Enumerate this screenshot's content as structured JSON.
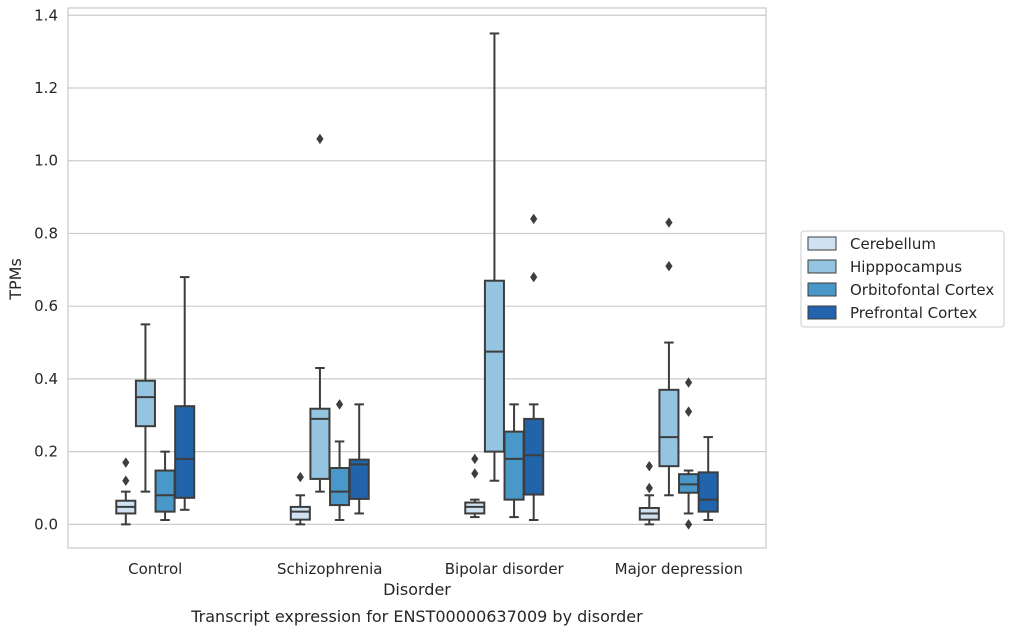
{
  "caption": "Transcript expression for ENST00000637009 by disorder",
  "chart_data": {
    "type": "box",
    "xlabel": "Disorder",
    "ylabel": "TPMs",
    "ylim": [
      -0.065,
      1.42
    ],
    "yticks": [
      "0.0",
      "0.2",
      "0.4",
      "0.6",
      "0.8",
      "1.0",
      "1.2",
      "1.4"
    ],
    "grid": "horizontal",
    "legend_position": "right",
    "categories": [
      "Control",
      "Schizophrenia",
      "Bipolar disorder",
      "Major depression"
    ],
    "series": [
      {
        "name": "Cerebellum",
        "color": "#d0e2f2",
        "boxes": [
          {
            "whisker_low": 0.0,
            "q1": 0.03,
            "median": 0.048,
            "q3": 0.065,
            "whisker_high": 0.09,
            "outliers": [
              0.12,
              0.17
            ]
          },
          {
            "whisker_low": 0.0,
            "q1": 0.013,
            "median": 0.035,
            "q3": 0.048,
            "whisker_high": 0.08,
            "outliers": [
              0.13
            ]
          },
          {
            "whisker_low": 0.02,
            "q1": 0.03,
            "median": 0.048,
            "q3": 0.06,
            "whisker_high": 0.068,
            "outliers": [
              0.14,
              0.18
            ]
          },
          {
            "whisker_low": 0.0,
            "q1": 0.013,
            "median": 0.03,
            "q3": 0.045,
            "whisker_high": 0.08,
            "outliers": [
              0.1,
              0.16
            ]
          }
        ]
      },
      {
        "name": "Hipppocampus",
        "color": "#94c4df",
        "boxes": [
          {
            "whisker_low": 0.09,
            "q1": 0.27,
            "median": 0.35,
            "q3": 0.395,
            "whisker_high": 0.55,
            "outliers": []
          },
          {
            "whisker_low": 0.09,
            "q1": 0.125,
            "median": 0.29,
            "q3": 0.318,
            "whisker_high": 0.43,
            "outliers": [
              1.06
            ]
          },
          {
            "whisker_low": 0.12,
            "q1": 0.2,
            "median": 0.475,
            "q3": 0.67,
            "whisker_high": 1.35,
            "outliers": []
          },
          {
            "whisker_low": 0.08,
            "q1": 0.16,
            "median": 0.24,
            "q3": 0.37,
            "whisker_high": 0.5,
            "outliers": [
              0.71,
              0.83
            ]
          }
        ]
      },
      {
        "name": "Orbitofontal Cortex",
        "color": "#4a98c9",
        "boxes": [
          {
            "whisker_low": 0.012,
            "q1": 0.035,
            "median": 0.08,
            "q3": 0.148,
            "whisker_high": 0.2,
            "outliers": []
          },
          {
            "whisker_low": 0.012,
            "q1": 0.053,
            "median": 0.09,
            "q3": 0.155,
            "whisker_high": 0.228,
            "outliers": [
              0.33
            ]
          },
          {
            "whisker_low": 0.02,
            "q1": 0.068,
            "median": 0.18,
            "q3": 0.255,
            "whisker_high": 0.33,
            "outliers": []
          },
          {
            "whisker_low": 0.03,
            "q1": 0.087,
            "median": 0.11,
            "q3": 0.138,
            "whisker_high": 0.148,
            "outliers": [
              0.0,
              0.31,
              0.39
            ]
          }
        ]
      },
      {
        "name": "Prefrontal Cortex",
        "color": "#2164ab",
        "boxes": [
          {
            "whisker_low": 0.04,
            "q1": 0.073,
            "median": 0.18,
            "q3": 0.325,
            "whisker_high": 0.68,
            "outliers": []
          },
          {
            "whisker_low": 0.03,
            "q1": 0.07,
            "median": 0.165,
            "q3": 0.178,
            "whisker_high": 0.33,
            "outliers": []
          },
          {
            "whisker_low": 0.012,
            "q1": 0.082,
            "median": 0.19,
            "q3": 0.29,
            "whisker_high": 0.33,
            "outliers": [
              0.68,
              0.84
            ]
          },
          {
            "whisker_low": 0.012,
            "q1": 0.035,
            "median": 0.068,
            "q3": 0.143,
            "whisker_high": 0.24,
            "outliers": []
          }
        ]
      }
    ]
  }
}
